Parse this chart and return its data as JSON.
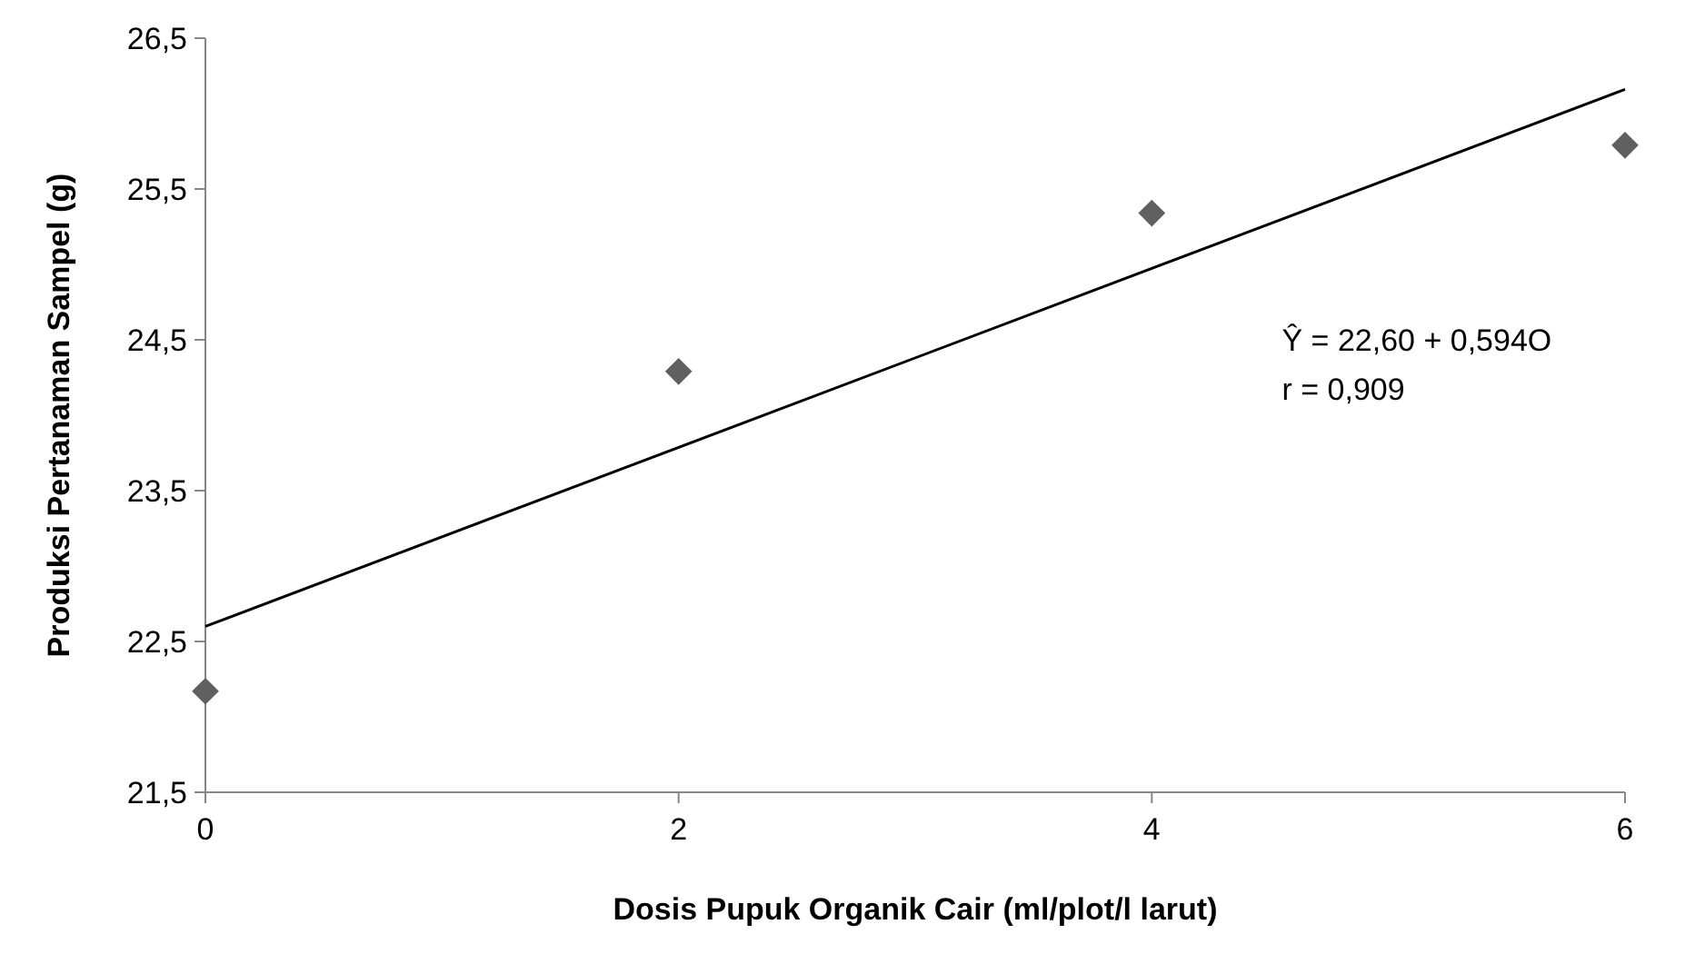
{
  "chart_data": {
    "type": "scatter",
    "xlabel": "Dosis Pupuk Organik Cair (ml/plot/l larut)",
    "ylabel": "Produksi Pertanaman Sampel (g)",
    "x": [
      0,
      2,
      4,
      6
    ],
    "series": [
      {
        "color": "#606060",
        "values": [
          22.17,
          24.29,
          25.34,
          25.79
        ],
        "marker": "diamond"
      },
      {
        "type": "line",
        "color": "#000000",
        "x": [
          0,
          6
        ],
        "values": [
          22.6,
          26.16
        ],
        "marker": "none"
      }
    ],
    "xlim": [
      0,
      6
    ],
    "xticks": [
      0,
      2,
      4,
      6
    ],
    "ylim": [
      21.5,
      26.5
    ],
    "yticks": [
      {
        "value": 21.5,
        "label": "21,5"
      },
      {
        "value": 22.5,
        "label": "22,5"
      },
      {
        "value": 23.5,
        "label": "23,5"
      },
      {
        "value": 24.5,
        "label": "24,5"
      },
      {
        "value": 25.5,
        "label": "25,5"
      },
      {
        "value": 26.5,
        "label": "26,5"
      }
    ],
    "annotations": [
      "Ŷ = 22,60 + 0,594O",
      "r = 0,909"
    ],
    "grid": false
  }
}
